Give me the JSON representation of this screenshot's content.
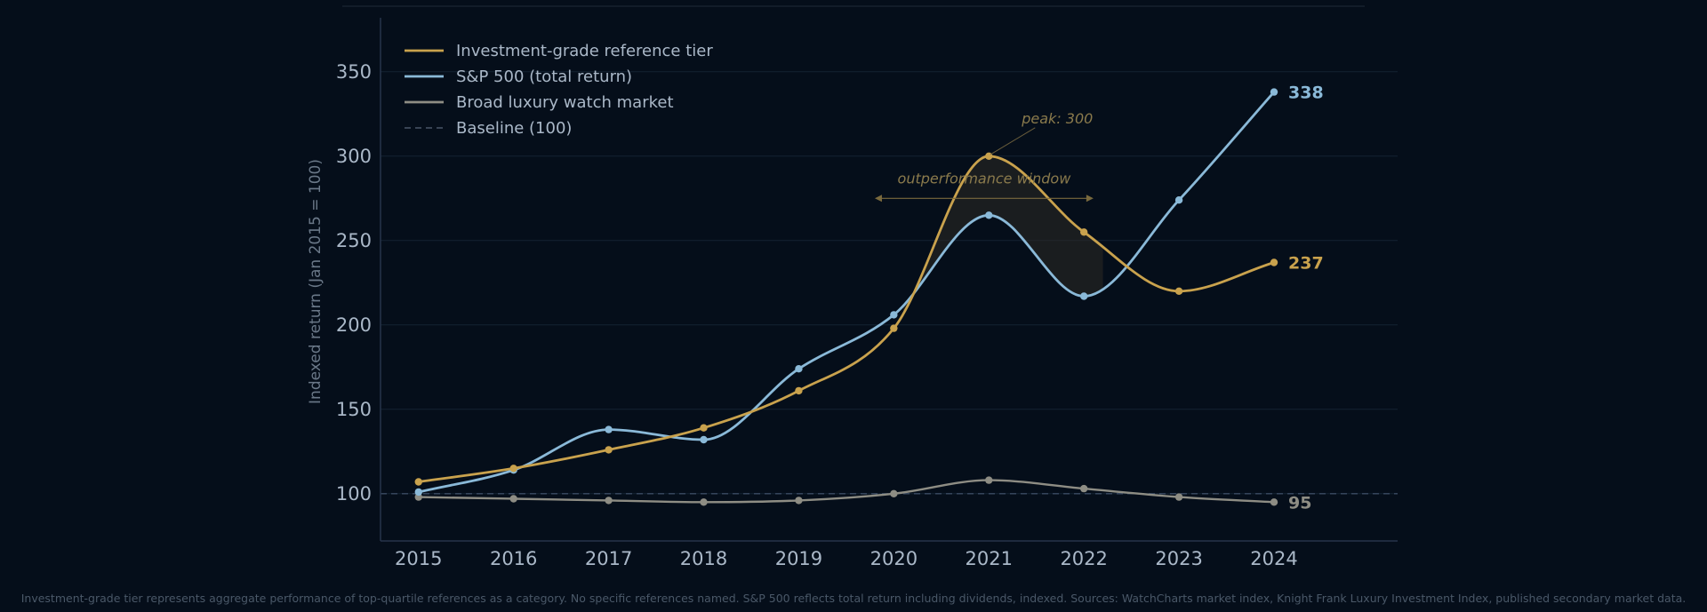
{
  "chart_data": {
    "type": "line",
    "x": [
      2015,
      2016,
      2017,
      2018,
      2019,
      2020,
      2021,
      2022,
      2023,
      2024
    ],
    "ylabel": "Indexed return  (Jan 2015 = 100)",
    "xlabel": "",
    "ylim": [
      72,
      382
    ],
    "xlim": [
      2014.6,
      2025.3
    ],
    "yticks": [
      100,
      150,
      200,
      250,
      300,
      350
    ],
    "grid": "horizontal",
    "legend_position": "top-left",
    "series": [
      {
        "name": "Investment-grade reference tier",
        "color": "#c9a24d",
        "values": [
          107,
          115,
          126,
          139,
          161,
          198,
          300,
          255,
          220,
          237
        ],
        "end_label": "237"
      },
      {
        "name": "S&P 500  (total return)",
        "color": "#8ab9d8",
        "values": [
          101,
          114,
          138,
          132,
          174,
          206,
          265,
          217,
          274,
          338
        ],
        "end_label": "338"
      },
      {
        "name": "Broad luxury watch market",
        "color": "#8e8d84",
        "values": [
          98,
          97,
          96,
          95,
          96,
          100,
          108,
          103,
          98,
          95
        ],
        "end_label": "95"
      }
    ],
    "baseline": {
      "name": "Baseline (100)",
      "value": 100,
      "color": "#4a5568"
    },
    "annotations": {
      "peak": {
        "text": "peak: 300",
        "x": 2021,
        "y": 300
      },
      "window": {
        "text": "outperformance window",
        "x_start": 2019.8,
        "x_end": 2022.1,
        "y": 275
      }
    },
    "shaded_region": {
      "x_start": 2020.1,
      "x_end": 2022.2
    }
  },
  "caption": "Investment-grade tier represents aggregate performance of top-quartile references as a category. No specific references named. S&P 500 reflects total return including dividends, indexed. Sources: WatchCharts market index, Knight Frank Luxury Investment Index, published secondary market data."
}
